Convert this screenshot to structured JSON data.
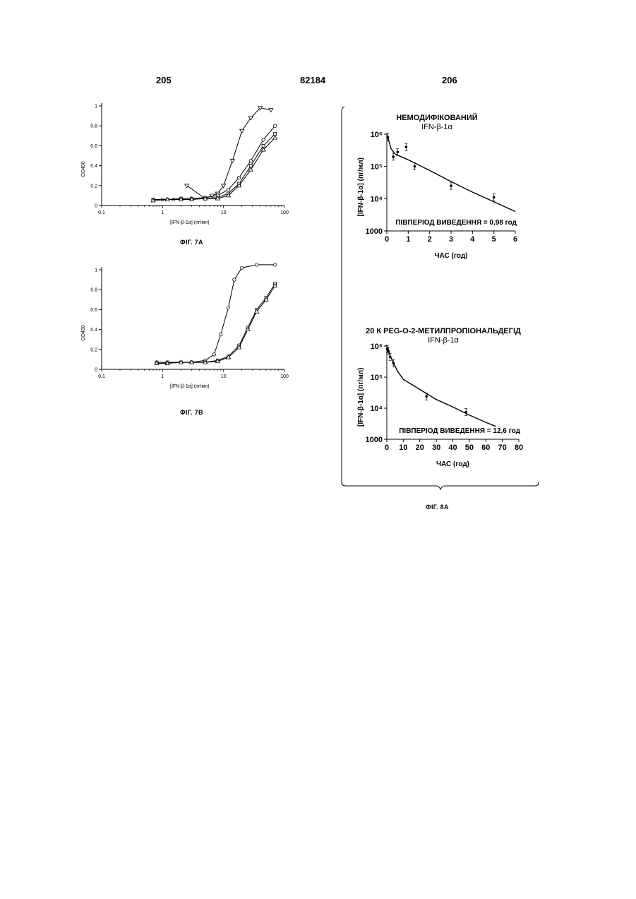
{
  "header": {
    "left_page": "205",
    "center_number": "82184",
    "right_page": "206"
  },
  "captions": {
    "fig7a": "ФІГ. 7А",
    "fig7b": "ФІГ. 7В",
    "fig8a": "ФІГ. 8А"
  },
  "chart_data": [
    {
      "id": "fig7a",
      "type": "line",
      "xscale": "log",
      "xlim": [
        0.1,
        100
      ],
      "ylim": [
        0,
        1
      ],
      "xlabel": "[IFN-β-1α] (пг/мл)",
      "ylabel": "OD450",
      "xticks": [
        "0.1",
        "1",
        "10",
        "100"
      ],
      "yticks": [
        "0",
        "0.2",
        "0.4",
        "0.6",
        "0.8",
        "1"
      ],
      "series": [
        {
          "marker": "triangle-down",
          "x": [
            2.5,
            5,
            6.5,
            8,
            10,
            14,
            20,
            28,
            40,
            60
          ],
          "y": [
            0.2,
            0.07,
            0.1,
            0.12,
            0.2,
            0.45,
            0.75,
            0.88,
            0.98,
            0.96
          ]
        },
        {
          "marker": "circle",
          "x": [
            0.7,
            1,
            1.5,
            2,
            3,
            5,
            8,
            12,
            18,
            28,
            45,
            70
          ],
          "y": [
            0.06,
            0.06,
            0.06,
            0.07,
            0.07,
            0.08,
            0.1,
            0.16,
            0.28,
            0.45,
            0.66,
            0.8
          ]
        },
        {
          "marker": "square",
          "x": [
            0.7,
            1.2,
            2,
            3,
            5,
            8,
            12,
            18,
            28,
            45,
            70
          ],
          "y": [
            0.06,
            0.06,
            0.07,
            0.07,
            0.07,
            0.08,
            0.12,
            0.22,
            0.4,
            0.6,
            0.72
          ]
        },
        {
          "marker": "triangle-up",
          "x": [
            0.7,
            1.2,
            2,
            3,
            5,
            8,
            12,
            18,
            28,
            45,
            70
          ],
          "y": [
            0.05,
            0.06,
            0.06,
            0.06,
            0.07,
            0.07,
            0.1,
            0.2,
            0.36,
            0.56,
            0.68
          ]
        }
      ]
    },
    {
      "id": "fig7b",
      "type": "line",
      "xscale": "log",
      "xlim": [
        0.1,
        100
      ],
      "ylim": [
        0,
        1
      ],
      "xlabel": "[IFN-β-1α] (пг/мл)",
      "ylabel": "OD450",
      "xticks": [
        "0.1",
        "1",
        "10",
        "100"
      ],
      "yticks": [
        "0",
        "0.2",
        "0.4",
        "0.6",
        "0.8",
        "1"
      ],
      "series": [
        {
          "marker": "circle",
          "x": [
            0.8,
            1.2,
            2,
            3,
            5,
            7,
            9,
            12,
            15,
            20,
            35,
            70
          ],
          "y": [
            0.07,
            0.07,
            0.07,
            0.07,
            0.09,
            0.15,
            0.35,
            0.62,
            0.9,
            1.02,
            1.05,
            1.05
          ]
        },
        {
          "marker": "square",
          "x": [
            0.8,
            1.2,
            2,
            3,
            5,
            8,
            12,
            18,
            25,
            35,
            50,
            70
          ],
          "y": [
            0.07,
            0.07,
            0.07,
            0.07,
            0.07,
            0.09,
            0.13,
            0.24,
            0.42,
            0.6,
            0.72,
            0.86
          ]
        },
        {
          "marker": "triangle-up",
          "x": [
            0.8,
            1.2,
            2,
            3,
            5,
            8,
            12,
            18,
            25,
            35,
            50,
            70
          ],
          "y": [
            0.06,
            0.06,
            0.07,
            0.07,
            0.07,
            0.08,
            0.12,
            0.22,
            0.4,
            0.58,
            0.7,
            0.84
          ]
        }
      ]
    },
    {
      "id": "fig8a-top",
      "type": "line",
      "yscale": "log",
      "title": "НЕМОДИФІКОВАНИЙ",
      "subtitle": "IFN-β-1α",
      "xlabel": "ЧАС (год)",
      "ylabel": "[IFN-β-1α] (пг/мл)",
      "xlim": [
        0,
        6
      ],
      "ylim": [
        1000,
        1000000
      ],
      "xticks": [
        "0",
        "1",
        "2",
        "3",
        "4",
        "5",
        "6"
      ],
      "yticks": [
        "1000",
        "10⁴",
        "10⁵",
        "10⁶"
      ],
      "annotation": "ПІВПЕРІОД ВИВЕДЕННЯ = 0,98 год",
      "points": {
        "x": [
          0.05,
          0.3,
          0.5,
          0.9,
          1.3,
          3,
          5
        ],
        "y": [
          800000,
          200000,
          280000,
          400000,
          100000,
          25000,
          11000
        ]
      },
      "fit": {
        "x": [
          0.02,
          0.1,
          0.2,
          0.4,
          1,
          2,
          3,
          4,
          5,
          6
        ],
        "y": [
          900000,
          600000,
          350000,
          240000,
          160000,
          75000,
          34000,
          16000,
          8000,
          4000
        ]
      }
    },
    {
      "id": "fig8a-bottom",
      "type": "line",
      "yscale": "log",
      "title": "20 К PEG-O-2-МЕТИЛПРОПІОНАЛЬДЕГІД",
      "subtitle": "IFN-β-1α",
      "xlabel": "ЧАС (год)",
      "ylabel": "[IFN-β-1α] (пг/мл)",
      "xlim": [
        0,
        80
      ],
      "ylim": [
        1000,
        1000000
      ],
      "xticks": [
        "0",
        "10",
        "20",
        "30",
        "40",
        "50",
        "60",
        "70",
        "80"
      ],
      "yticks": [
        "1000",
        "10⁴",
        "10⁵",
        "10⁶"
      ],
      "annotation": "ПІВПЕРІОД ВИВЕДЕННЯ = 12,6 год",
      "points": {
        "x": [
          0.2,
          1,
          2,
          4,
          24,
          48
        ],
        "y": [
          800000,
          700000,
          450000,
          280000,
          24000,
          7500
        ]
      },
      "fit": {
        "x": [
          0.1,
          1,
          2,
          4,
          7,
          10,
          20,
          30,
          40,
          50,
          60,
          66
        ],
        "y": [
          950000,
          750000,
          500000,
          280000,
          140000,
          85000,
          40000,
          19000,
          11000,
          6000,
          3500,
          2600
        ]
      }
    }
  ]
}
